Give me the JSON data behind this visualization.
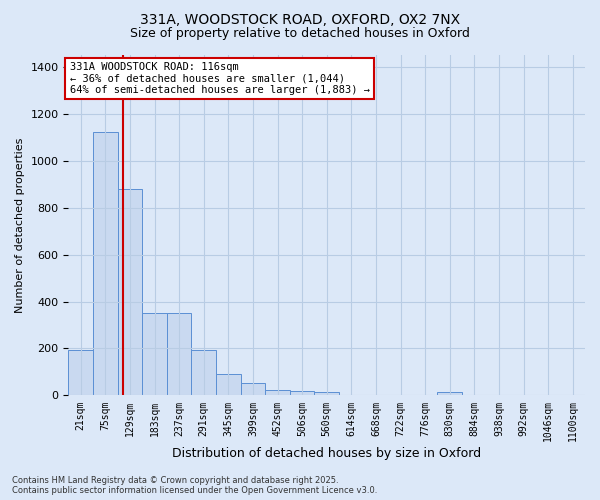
{
  "title_line1": "331A, WOODSTOCK ROAD, OXFORD, OX2 7NX",
  "title_line2": "Size of property relative to detached houses in Oxford",
  "xlabel": "Distribution of detached houses by size in Oxford",
  "ylabel": "Number of detached properties",
  "bar_labels": [
    "21sqm",
    "75sqm",
    "129sqm",
    "183sqm",
    "237sqm",
    "291sqm",
    "345sqm",
    "399sqm",
    "452sqm",
    "506sqm",
    "560sqm",
    "614sqm",
    "668sqm",
    "722sqm",
    "776sqm",
    "830sqm",
    "884sqm",
    "938sqm",
    "992sqm",
    "1046sqm",
    "1100sqm"
  ],
  "bar_values": [
    195,
    1120,
    880,
    350,
    350,
    195,
    90,
    55,
    25,
    20,
    15,
    0,
    0,
    0,
    0,
    15,
    0,
    0,
    0,
    0,
    0
  ],
  "bar_color": "#c9d9f0",
  "bar_edge_color": "#5b8fd4",
  "ylim": [
    0,
    1450
  ],
  "yticks": [
    0,
    200,
    400,
    600,
    800,
    1000,
    1200,
    1400
  ],
  "vline_color": "#cc0000",
  "vline_bar_index": 1.72,
  "annotation_text": "331A WOODSTOCK ROAD: 116sqm\n← 36% of detached houses are smaller (1,044)\n64% of semi-detached houses are larger (1,883) →",
  "annotation_box_color": "#cc0000",
  "footer_line1": "Contains HM Land Registry data © Crown copyright and database right 2025.",
  "footer_line2": "Contains public sector information licensed under the Open Government Licence v3.0.",
  "bg_color": "#dce8f8",
  "grid_color": "#b8cce4",
  "title_fontsize": 10,
  "subtitle_fontsize": 9
}
